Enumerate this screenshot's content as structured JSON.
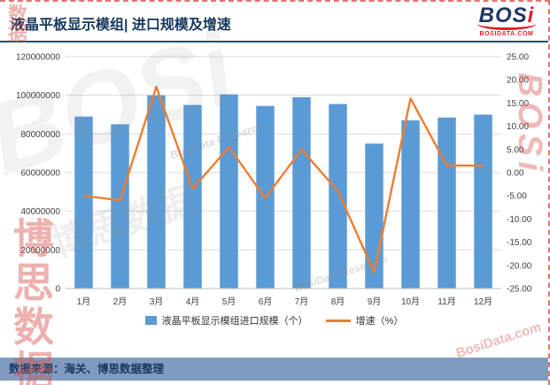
{
  "header": {
    "title": "液晶平板显示模组| 进口规模及增速",
    "logo": {
      "text_main": "BOS",
      "text_accent": "i",
      "subtext": "BOSIDATA.COM"
    }
  },
  "chart_data": {
    "type": "combo",
    "categories": [
      "1月",
      "2月",
      "3月",
      "4月",
      "5月",
      "6月",
      "7月",
      "8月",
      "9月",
      "10月",
      "11月",
      "12月"
    ],
    "series": [
      {
        "name": "液晶平板显示模组进口规模（个）",
        "type": "bar",
        "axis": "left",
        "color": "#5b9bd5",
        "values": [
          89000000,
          85000000,
          100000000,
          95000000,
          100500000,
          94500000,
          99000000,
          95500000,
          75000000,
          87000000,
          88500000,
          90000000
        ]
      },
      {
        "name": "增速（%）",
        "type": "line",
        "axis": "right",
        "color": "#ed7d31",
        "values": [
          -5,
          -6,
          18.5,
          -3.5,
          5.5,
          -5.5,
          5,
          -4,
          -21.5,
          16,
          1.5,
          1.5
        ]
      }
    ],
    "left_axis": {
      "min": 0,
      "max": 120000000,
      "tick_labels": [
        "120000000",
        "100000000",
        "80000000",
        "60000000",
        "40000000",
        "20000000",
        "0"
      ]
    },
    "right_axis": {
      "min": -25,
      "max": 25,
      "tick_labels": [
        "25.00",
        "20.00",
        "15.00",
        "10.00",
        "5.00",
        "0.00",
        "-5.00",
        "-10.00",
        "-15.00",
        "-20.00",
        "-25.00"
      ]
    },
    "grid": true,
    "legend_position": "bottom",
    "title": "液晶平板显示模组| 进口规模及增速",
    "xlabel": "",
    "ylabel": ""
  },
  "footer": {
    "source": "数据来源：海关、博思数据整理"
  },
  "watermarks": {
    "brand": "BOSi",
    "brand_cn": "博思数据",
    "research": "BosiData Research",
    "site": "BosiData.com",
    "data_cn": "数据"
  }
}
